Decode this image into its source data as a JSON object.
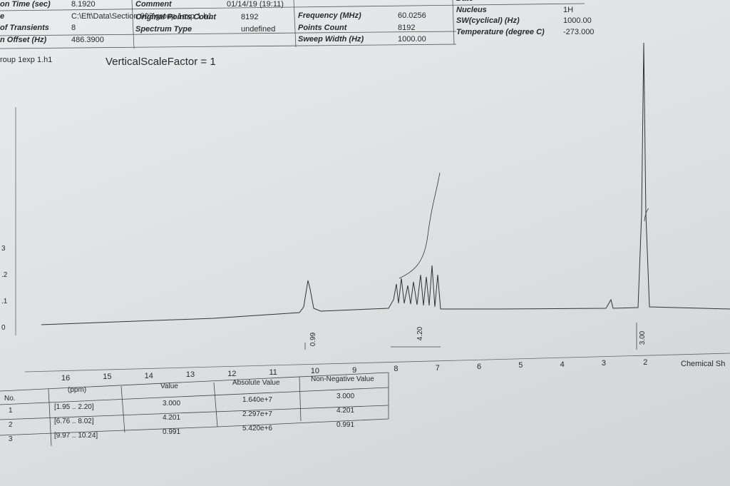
{
  "header": {
    "col1": [
      {
        "label": "on Time (sec)",
        "value": "8.1920"
      },
      {
        "label": "e",
        "value": "C:\\Eft\\Data\\Section 903\\group 1exp 1.h1"
      },
      {
        "label": "of Transients",
        "value": "8"
      },
      {
        "label": "n Offset (Hz)",
        "value": "486.3900"
      }
    ],
    "file": "roup 1exp 1.h1",
    "col2": [
      {
        "label": "Comment",
        "value": "01/14/19 (19:11)"
      },
      {
        "label": "Original Points Count",
        "value": "8192"
      },
      {
        "label": "Spectrum Type",
        "value": "undefined"
      }
    ],
    "col3": [
      {
        "label": "Frequency (MHz)",
        "value": "60.0256"
      },
      {
        "label": "Points Count",
        "value": "8192"
      },
      {
        "label": "Sweep Width (Hz)",
        "value": "1000.00"
      }
    ],
    "col4": [
      {
        "label": "Date",
        "value": ""
      },
      {
        "label": "Nucleus",
        "value": "1H"
      },
      {
        "label": "SW(cyclical) (Hz)",
        "value": "1000.00"
      },
      {
        "label": "Temperature (degree C)",
        "value": "-273.000"
      }
    ]
  },
  "scale_note": "VerticalScaleFactor = 1",
  "y_labels": [
    "3",
    ".2",
    ".1",
    "0"
  ],
  "x_labels": [
    "16",
    "15",
    "14",
    "13",
    "12",
    "11",
    "10",
    "9",
    "8",
    "7",
    "6",
    "5",
    "4",
    "3",
    "2"
  ],
  "x_axis_title": "Chemical Sh",
  "integrals": [
    "0.99",
    "4.20",
    "3.00"
  ],
  "table": {
    "header": [
      "No.",
      "(ppm)",
      "Value",
      "Absolute Value",
      "Non-Negative Value"
    ],
    "rows": [
      [
        "1",
        "[1.95 .. 2.20]",
        "3.000",
        "1.640e+7",
        "3.000"
      ],
      [
        "2",
        "[6.76 .. 8.02]",
        "4.201",
        "2.297e+7",
        "4.201"
      ],
      [
        "3",
        "[9.97 .. 10.24]",
        "0.991",
        "5.420e+6",
        "0.991"
      ]
    ]
  }
}
